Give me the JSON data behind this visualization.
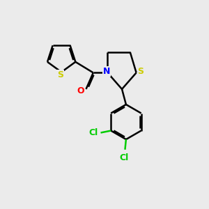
{
  "background_color": "#ebebeb",
  "bond_color": "#000000",
  "S_color": "#cccc00",
  "N_color": "#0000ff",
  "O_color": "#ff0000",
  "Cl_color": "#00cc00",
  "line_width": 1.8,
  "dbo": 0.07,
  "figsize": [
    3.0,
    3.0
  ],
  "dpi": 100,
  "xlim": [
    0,
    10
  ],
  "ylim": [
    0,
    10
  ]
}
